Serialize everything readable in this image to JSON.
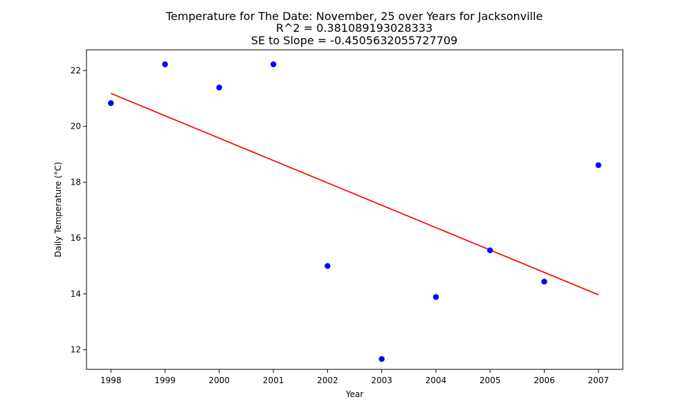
{
  "chart_data": {
    "type": "scatter",
    "title": "Temperature for The Date: November, 25 over Years for Jacksonville",
    "subtitle_lines": [
      "R^2 = 0.381089193028333",
      "SE to Slope = -0.4505632055727709"
    ],
    "xlabel": "Year",
    "ylabel": "Daily Temperature (°C)",
    "x_ticks": [
      1998,
      1999,
      2000,
      2001,
      2002,
      2003,
      2004,
      2005,
      2006,
      2007
    ],
    "y_ticks": [
      12,
      14,
      16,
      18,
      20,
      22
    ],
    "xlim": [
      1997.55,
      2007.45
    ],
    "ylim": [
      11.3,
      22.74
    ],
    "grid": false,
    "series": [
      {
        "kind": "scatter",
        "color": "#0000ff",
        "points": [
          {
            "x": 1998,
            "y": 20.83
          },
          {
            "x": 1999,
            "y": 22.22
          },
          {
            "x": 2000,
            "y": 21.39
          },
          {
            "x": 2001,
            "y": 22.22
          },
          {
            "x": 2002,
            "y": 15.0
          },
          {
            "x": 2003,
            "y": 11.67
          },
          {
            "x": 2004,
            "y": 13.89
          },
          {
            "x": 2005,
            "y": 15.56
          },
          {
            "x": 2006,
            "y": 14.44
          },
          {
            "x": 2007,
            "y": 18.61
          }
        ]
      },
      {
        "kind": "line",
        "color": "#ff0000",
        "points": [
          {
            "x": 1998,
            "y": 21.18
          },
          {
            "x": 2007,
            "y": 13.97
          }
        ]
      }
    ]
  }
}
